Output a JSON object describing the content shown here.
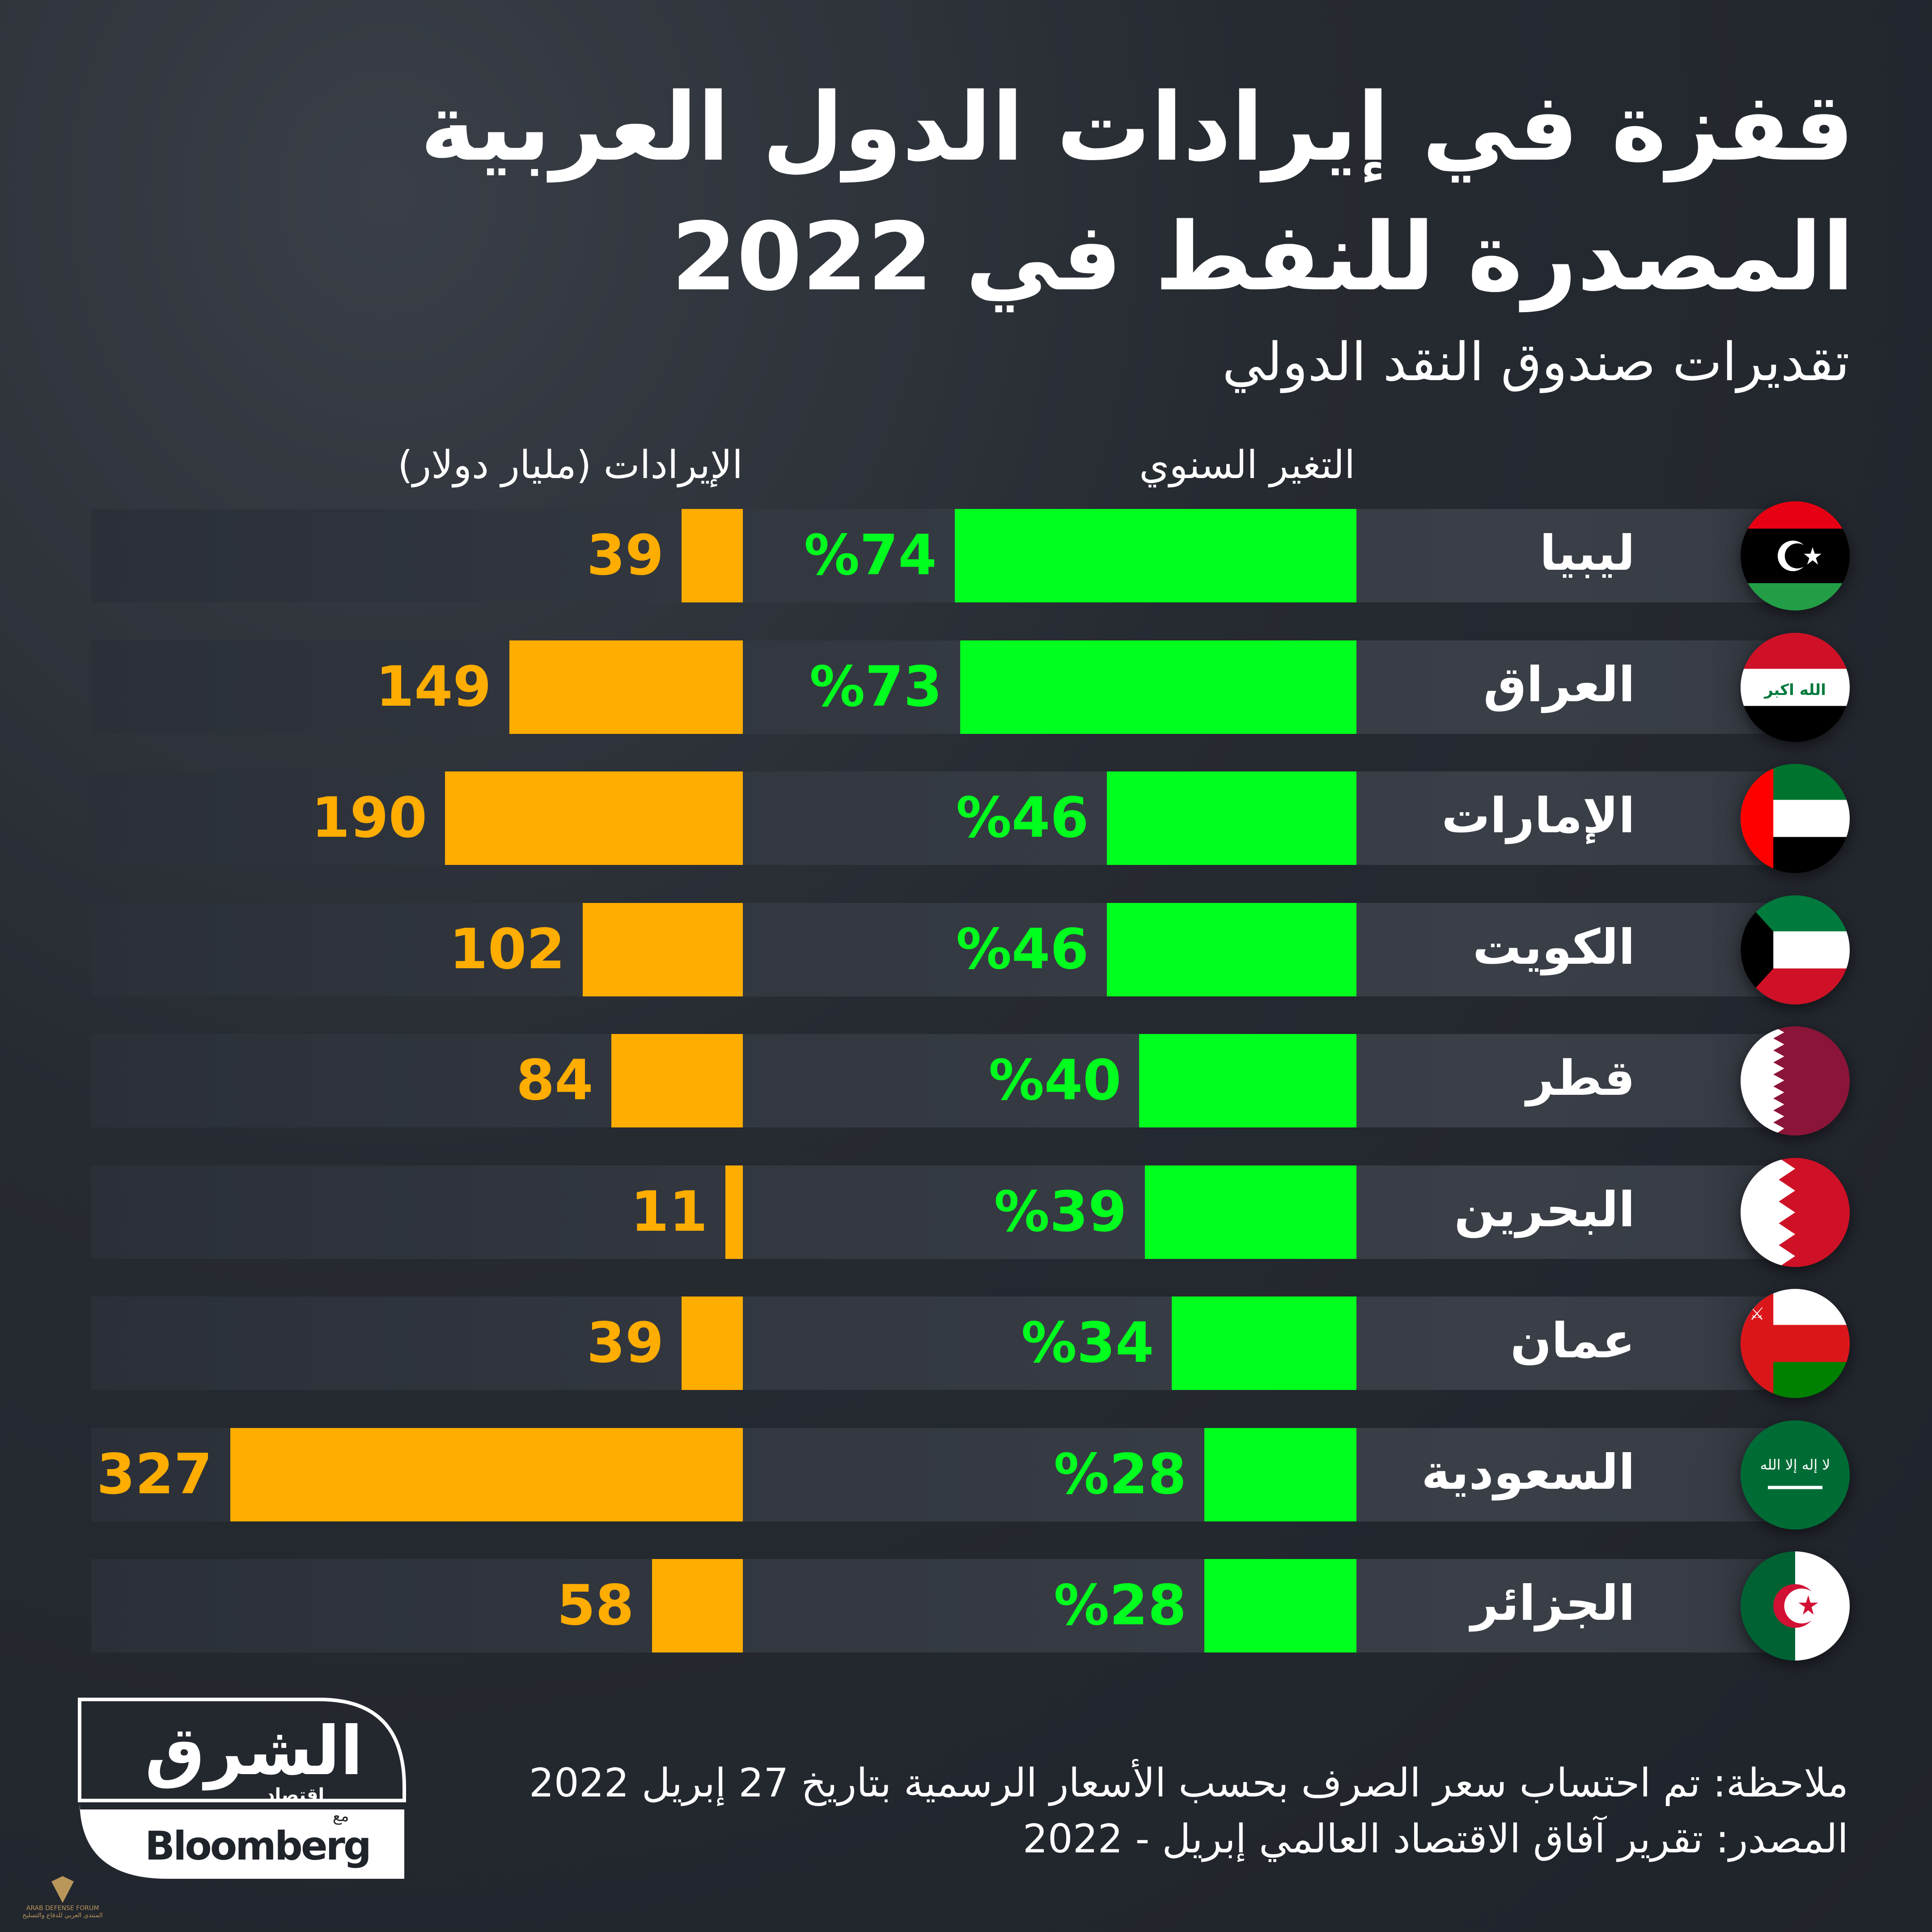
{
  "title": {
    "line1": "قفزة في إيرادات الدول العربية",
    "line2": "المصدرة للنفط في 2022"
  },
  "subtitle": "تقديرات صندوق النقد الدولي",
  "chart_data": {
    "type": "bar",
    "title": "قفزة في إيرادات الدول العربية المصدرة للنفط في 2022",
    "subtitle": "تقديرات صندوق النقد الدولي",
    "categories": [
      "ليبيا",
      "العراق",
      "الإمارات",
      "الكويت",
      "قطر",
      "البحرين",
      "عمان",
      "السعودية",
      "الجزائر"
    ],
    "flags": [
      "libya",
      "iraq",
      "uae",
      "kuwait",
      "qatar",
      "bahrain",
      "oman",
      "saudi",
      "algeria"
    ],
    "series": [
      {
        "name": "التغير السنوي",
        "unit": "%",
        "color": "#00ff1e",
        "values": [
          74,
          73,
          46,
          46,
          40,
          39,
          34,
          28,
          28
        ]
      },
      {
        "name": "الإيرادات (مليار دولار)",
        "unit": "مليار دولار",
        "color": "#ffad00",
        "values": [
          39,
          149,
          190,
          102,
          84,
          11,
          39,
          327,
          58
        ]
      }
    ]
  },
  "notes": {
    "note": "ملاحظة: تم احتساب سعر الصرف بحسب الأسعار الرسمية بتاريخ 27 إبريل 2022",
    "source": "المصدر: تقرير آفاق الاقتصاد العالمي إبريل - 2022"
  },
  "logo": {
    "name": "الشرق",
    "sub": "اقتصاد",
    "with": "مع",
    "partner": "Bloomberg"
  },
  "watermark": {
    "en": "ARAB DEFENSE FORUM",
    "ar": "المنتدى العربي للدفاع والتسليح"
  }
}
